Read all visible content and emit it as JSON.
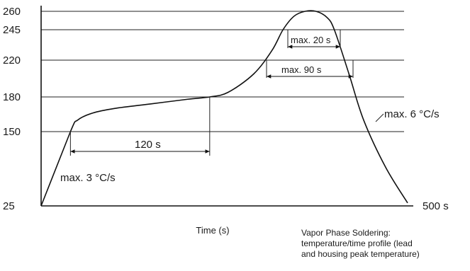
{
  "chart_data": {
    "type": "line",
    "title": "",
    "xlabel": "Time (s)",
    "ylabel": "",
    "xlim": [
      0,
      500
    ],
    "ylim": [
      25,
      260
    ],
    "y_ticks": [
      "260",
      "245",
      "220",
      "180",
      "150",
      "25"
    ],
    "x_end_label": "500 s",
    "grid": "horizontal lines at 150, 180, 220, 245, 260",
    "series": [
      {
        "x": [
          0,
          40,
          50,
          70,
          100,
          150,
          200,
          230,
          255,
          290,
          315,
          330,
          345,
          360,
          375,
          390,
          400,
          420,
          440,
          470,
          500
        ],
        "y": [
          25,
          150,
          160,
          166,
          170,
          174,
          178,
          180,
          185,
          205,
          228,
          245,
          256,
          260,
          260,
          255,
          245,
          205,
          160,
          90,
          30
        ]
      }
    ],
    "annotations": [
      {
        "text": "max. 3 °C/s"
      },
      {
        "text": "120 s"
      },
      {
        "text": "max. 90 s"
      },
      {
        "text": "max. 20 s"
      },
      {
        "text": "max. 6 °C/s"
      }
    ]
  },
  "labels": {
    "xlabel": "Time (s)",
    "caption": [
      "Vapor Phase Soldering:",
      "temperature/time profile (lead",
      "and housing peak temperature)"
    ]
  }
}
